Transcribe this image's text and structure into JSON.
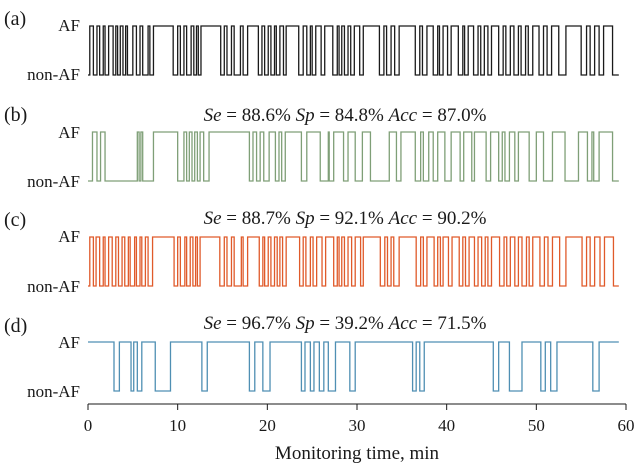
{
  "chart_data": {
    "type": "line",
    "layout": "four stacked binary step panels sharing one x axis",
    "xlabel": "Monitoring time, min",
    "xlim": [
      0,
      60
    ],
    "xticks": [
      0,
      10,
      20,
      30,
      40,
      50,
      60
    ],
    "y_states": [
      "non-AF",
      "AF"
    ],
    "panels": [
      {
        "tag": "(a)",
        "color": "#1a1a1a",
        "metrics": null,
        "af_intervals": [
          [
            0.2,
            0.6
          ],
          [
            1.0,
            1.3
          ],
          [
            1.7,
            1.9
          ],
          [
            2.3,
            2.8
          ],
          [
            3.1,
            3.3
          ],
          [
            3.6,
            3.9
          ],
          [
            4.2,
            4.4
          ],
          [
            5.0,
            5.4
          ],
          [
            5.8,
            6.1
          ],
          [
            6.7,
            6.9
          ],
          [
            7.3,
            9.5
          ],
          [
            10.0,
            10.3
          ],
          [
            10.7,
            11.0
          ],
          [
            11.5,
            11.8
          ],
          [
            12.1,
            12.3
          ],
          [
            12.6,
            14.8
          ],
          [
            15.2,
            15.5
          ],
          [
            16.0,
            16.3
          ],
          [
            17.0,
            17.3
          ],
          [
            17.8,
            19.0
          ],
          [
            19.4,
            19.7
          ],
          [
            20.1,
            20.4
          ],
          [
            20.8,
            21.0
          ],
          [
            21.4,
            21.8
          ],
          [
            22.1,
            23.5
          ],
          [
            24.0,
            24.4
          ],
          [
            24.8,
            25.0
          ],
          [
            25.4,
            26.0
          ],
          [
            26.4,
            27.3
          ],
          [
            27.8,
            28.0
          ],
          [
            28.3,
            28.6
          ],
          [
            29.0,
            29.3
          ],
          [
            29.7,
            30.3
          ],
          [
            30.7,
            32.5
          ],
          [
            33.0,
            33.3
          ],
          [
            33.8,
            34.2
          ],
          [
            34.7,
            36.5
          ],
          [
            37.0,
            37.3
          ],
          [
            37.8,
            38.5
          ],
          [
            39.0,
            39.2
          ],
          [
            39.6,
            40.1
          ],
          [
            40.5,
            41.3
          ],
          [
            41.8,
            42.0
          ],
          [
            42.4,
            43.0
          ],
          [
            43.5,
            43.8
          ],
          [
            44.2,
            44.6
          ],
          [
            45.0,
            45.8
          ],
          [
            46.3,
            46.6
          ],
          [
            47.1,
            47.5
          ],
          [
            48.0,
            48.3
          ],
          [
            48.8,
            49.1
          ],
          [
            49.6,
            50.3
          ],
          [
            50.8,
            51.2
          ],
          [
            51.7,
            52.5
          ],
          [
            53.3,
            55.0
          ],
          [
            55.6,
            56.0
          ],
          [
            56.5,
            57.0
          ],
          [
            57.5,
            58.5
          ]
        ]
      },
      {
        "tag": "(b)",
        "color": "#7f9f77",
        "metrics": {
          "se": "88.6%",
          "sp": "84.8%",
          "acc": "87.0%"
        },
        "af_intervals": [
          [
            0.5,
            1.0
          ],
          [
            1.4,
            1.9
          ],
          [
            5.5,
            5.7
          ],
          [
            5.9,
            6.1
          ],
          [
            7.3,
            10.0
          ],
          [
            10.7,
            11.0
          ],
          [
            11.3,
            11.6
          ],
          [
            11.9,
            12.2
          ],
          [
            12.5,
            12.9
          ],
          [
            13.5,
            18.0
          ],
          [
            18.4,
            18.8
          ],
          [
            19.2,
            19.6
          ],
          [
            20.2,
            20.9
          ],
          [
            21.3,
            21.6
          ],
          [
            22.0,
            23.8
          ],
          [
            24.4,
            25.9
          ],
          [
            26.8,
            26.9
          ],
          [
            27.4,
            28.5
          ],
          [
            29.0,
            29.8
          ],
          [
            30.6,
            31.5
          ],
          [
            33.6,
            34.4
          ],
          [
            34.9,
            36.5
          ],
          [
            37.1,
            37.4
          ],
          [
            38.0,
            38.5
          ],
          [
            39.0,
            39.8
          ],
          [
            40.5,
            41.5
          ],
          [
            41.9,
            42.8
          ],
          [
            43.1,
            44.4
          ],
          [
            44.9,
            45.8
          ],
          [
            46.2,
            46.5
          ],
          [
            47.0,
            47.6
          ],
          [
            48.0,
            49.2
          ],
          [
            50.0,
            50.8
          ],
          [
            51.8,
            53.2
          ],
          [
            54.7,
            55.7
          ],
          [
            56.2,
            56.4
          ],
          [
            57.0,
            58.5
          ]
        ]
      },
      {
        "tag": "(c)",
        "color": "#e05a2a",
        "metrics": {
          "se": "88.7%",
          "sp": "92.1%",
          "acc": "90.2%"
        },
        "af_intervals": [
          [
            0.2,
            0.6
          ],
          [
            0.9,
            1.3
          ],
          [
            1.7,
            1.9
          ],
          [
            2.3,
            2.7
          ],
          [
            3.1,
            3.4
          ],
          [
            3.8,
            4.1
          ],
          [
            4.5,
            4.7
          ],
          [
            5.2,
            5.4
          ],
          [
            5.8,
            6.0
          ],
          [
            6.4,
            6.7
          ],
          [
            7.2,
            9.6
          ],
          [
            10.0,
            10.3
          ],
          [
            10.8,
            11.0
          ],
          [
            11.4,
            11.7
          ],
          [
            12.0,
            12.2
          ],
          [
            12.5,
            14.7
          ],
          [
            15.2,
            15.5
          ],
          [
            16.0,
            16.3
          ],
          [
            17.1,
            17.3
          ],
          [
            17.8,
            19.1
          ],
          [
            19.5,
            19.7
          ],
          [
            20.1,
            20.4
          ],
          [
            20.8,
            21.1
          ],
          [
            21.4,
            21.7
          ],
          [
            22.1,
            23.6
          ],
          [
            24.0,
            24.3
          ],
          [
            24.8,
            25.1
          ],
          [
            25.5,
            26.1
          ],
          [
            26.5,
            27.4
          ],
          [
            27.8,
            28.0
          ],
          [
            28.3,
            28.6
          ],
          [
            29.0,
            29.4
          ],
          [
            29.8,
            30.4
          ],
          [
            30.7,
            32.6
          ],
          [
            33.1,
            33.4
          ],
          [
            33.8,
            34.1
          ],
          [
            34.7,
            36.6
          ],
          [
            37.1,
            37.4
          ],
          [
            37.8,
            38.6
          ],
          [
            39.0,
            39.3
          ],
          [
            39.6,
            40.2
          ],
          [
            40.6,
            41.4
          ],
          [
            41.8,
            42.1
          ],
          [
            42.5,
            43.1
          ],
          [
            43.5,
            43.9
          ],
          [
            44.3,
            44.6
          ],
          [
            45.0,
            45.9
          ],
          [
            46.4,
            46.7
          ],
          [
            47.1,
            47.6
          ],
          [
            48.0,
            48.4
          ],
          [
            48.9,
            49.2
          ],
          [
            49.6,
            50.4
          ],
          [
            50.9,
            51.3
          ],
          [
            51.8,
            52.6
          ],
          [
            53.3,
            55.1
          ],
          [
            55.6,
            56.0
          ],
          [
            56.5,
            57.1
          ],
          [
            57.6,
            58.6
          ]
        ]
      },
      {
        "tag": "(d)",
        "color": "#4f8fb3",
        "metrics": {
          "se": "96.7%",
          "sp": "39.2%",
          "acc": "71.5%"
        },
        "non_af_intervals": [
          [
            2.9,
            3.5
          ],
          [
            4.8,
            5.1
          ],
          [
            5.5,
            6.0
          ],
          [
            7.5,
            9.2
          ],
          [
            12.7,
            13.3
          ],
          [
            18.0,
            18.6
          ],
          [
            19.5,
            20.3
          ],
          [
            23.8,
            24.2
          ],
          [
            24.8,
            25.2
          ],
          [
            25.8,
            26.3
          ],
          [
            26.8,
            27.6
          ],
          [
            29.2,
            29.8
          ],
          [
            36.2,
            36.6
          ],
          [
            37.0,
            37.5
          ],
          [
            45.2,
            45.8
          ],
          [
            47.0,
            48.4
          ],
          [
            50.5,
            51.0
          ],
          [
            51.6,
            52.3
          ],
          [
            56.3,
            57.0
          ]
        ]
      }
    ]
  }
}
